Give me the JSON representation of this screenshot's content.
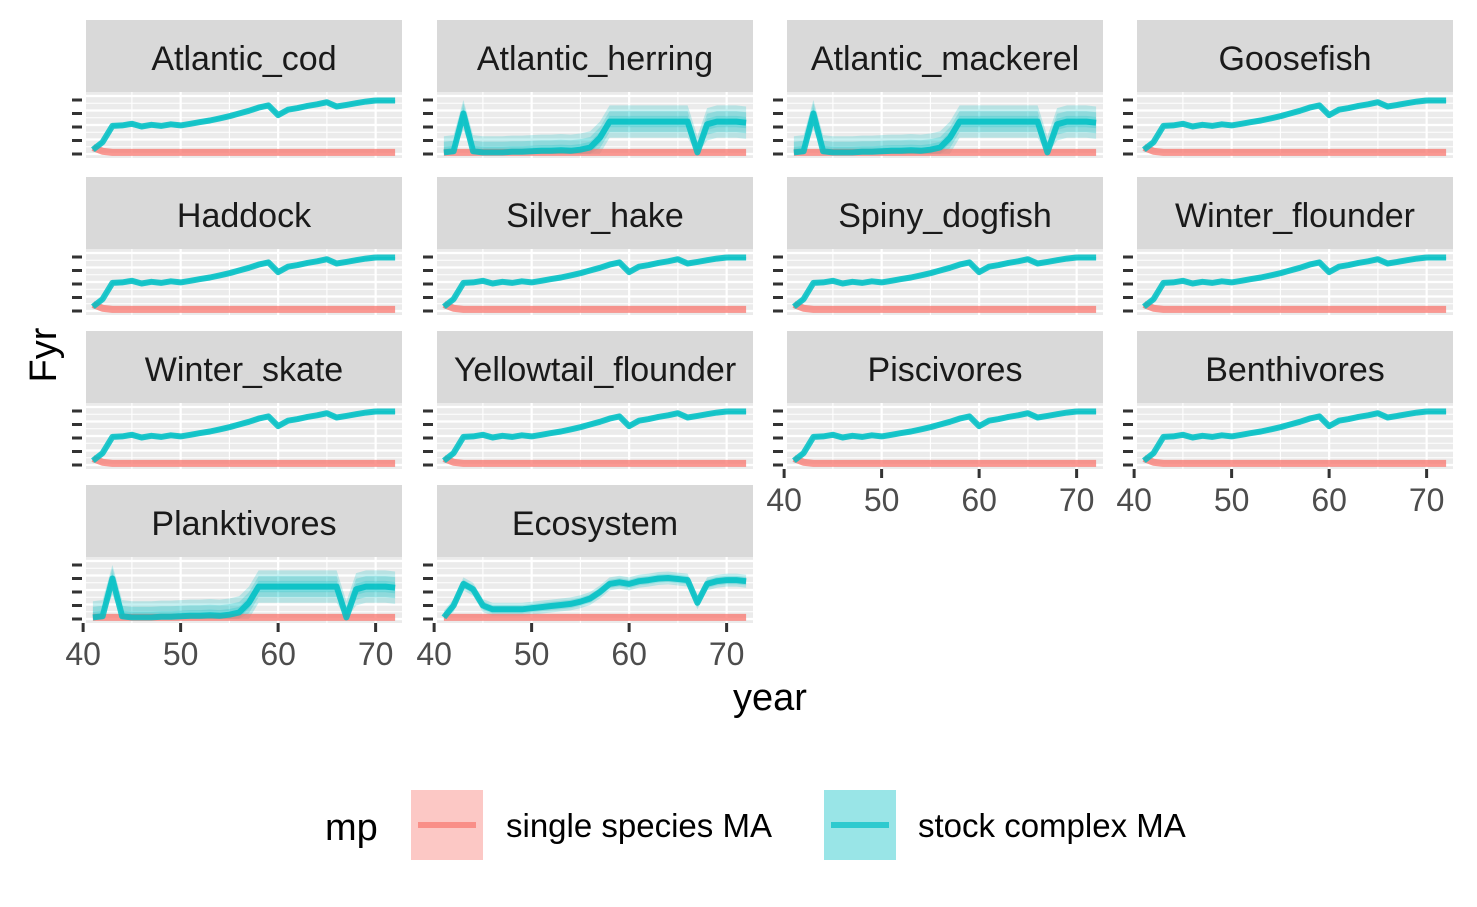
{
  "chart_data": {
    "type": "line",
    "layout": "facet grid, 4 columns, shared x axis, no y tick labels",
    "xlabel": "year",
    "ylabel": "Fyr",
    "xlim": [
      40.5,
      72.5
    ],
    "x_ticks": [
      40,
      50,
      60,
      70
    ],
    "y_tick_labels_shown": false,
    "grid": true,
    "legend": {
      "title": "mp",
      "position": "bottom",
      "entries": [
        {
          "label": "single species MA",
          "color": "#F8766D"
        },
        {
          "label": "stock complex MA",
          "color": "#00BFC4"
        }
      ]
    },
    "x": [
      41,
      42,
      43,
      44,
      45,
      46,
      47,
      48,
      49,
      50,
      51,
      52,
      53,
      54,
      55,
      56,
      57,
      58,
      59,
      60,
      61,
      62,
      63,
      64,
      65,
      66,
      67,
      68,
      69,
      70,
      71,
      72
    ],
    "ylim": [
      0,
      1
    ],
    "panels": [
      {
        "name": "Atlantic_cod",
        "pattern": "trend"
      },
      {
        "name": "Atlantic_herring",
        "pattern": "spiky"
      },
      {
        "name": "Atlantic_mackerel",
        "pattern": "spiky"
      },
      {
        "name": "Goosefish",
        "pattern": "trend"
      },
      {
        "name": "Haddock",
        "pattern": "trend"
      },
      {
        "name": "Silver_hake",
        "pattern": "trend"
      },
      {
        "name": "Spiny_dogfish",
        "pattern": "trend"
      },
      {
        "name": "Winter_flounder",
        "pattern": "trend"
      },
      {
        "name": "Winter_skate",
        "pattern": "trend"
      },
      {
        "name": "Yellowtail_flounder",
        "pattern": "trend"
      },
      {
        "name": "Piscivores",
        "pattern": "trend"
      },
      {
        "name": "Benthivores",
        "pattern": "trend"
      },
      {
        "name": "Planktivores",
        "pattern": "spiky"
      },
      {
        "name": "Ecosystem",
        "pattern": "eco"
      }
    ],
    "series_patterns": {
      "trend": {
        "stock_complex": [
          0.08,
          0.22,
          0.52,
          0.53,
          0.56,
          0.51,
          0.54,
          0.52,
          0.55,
          0.53,
          0.56,
          0.59,
          0.62,
          0.66,
          0.7,
          0.75,
          0.8,
          0.86,
          0.9,
          0.72,
          0.82,
          0.85,
          0.89,
          0.92,
          0.96,
          0.88,
          0.91,
          0.94,
          0.97,
          0.99,
          0.99,
          0.99
        ],
        "stock_complex_band": 0.05,
        "single_species": [
          0.12,
          0.05,
          0.03,
          0.03,
          0.03,
          0.03,
          0.03,
          0.03,
          0.03,
          0.03,
          0.03,
          0.03,
          0.03,
          0.03,
          0.03,
          0.03,
          0.03,
          0.03,
          0.03,
          0.03,
          0.03,
          0.03,
          0.03,
          0.03,
          0.03,
          0.03,
          0.03,
          0.03,
          0.03,
          0.03,
          0.03,
          0.03
        ]
      },
      "spiky": {
        "stock_complex": [
          0.03,
          0.05,
          0.75,
          0.05,
          0.03,
          0.03,
          0.03,
          0.04,
          0.04,
          0.05,
          0.06,
          0.06,
          0.07,
          0.06,
          0.08,
          0.12,
          0.3,
          0.6,
          0.6,
          0.6,
          0.6,
          0.6,
          0.6,
          0.6,
          0.6,
          0.6,
          0.03,
          0.55,
          0.6,
          0.6,
          0.6,
          0.58
        ],
        "stock_complex_band": 0.3,
        "single_species": [
          0.03,
          0.03,
          0.03,
          0.03,
          0.03,
          0.03,
          0.03,
          0.03,
          0.03,
          0.03,
          0.03,
          0.03,
          0.03,
          0.03,
          0.03,
          0.03,
          0.03,
          0.03,
          0.03,
          0.03,
          0.03,
          0.03,
          0.03,
          0.03,
          0.03,
          0.03,
          0.03,
          0.03,
          0.03,
          0.03,
          0.03,
          0.03
        ]
      },
      "eco": {
        "stock_complex": [
          0.03,
          0.25,
          0.65,
          0.55,
          0.25,
          0.18,
          0.18,
          0.18,
          0.18,
          0.2,
          0.22,
          0.24,
          0.26,
          0.28,
          0.32,
          0.38,
          0.5,
          0.65,
          0.68,
          0.65,
          0.7,
          0.72,
          0.75,
          0.76,
          0.74,
          0.72,
          0.3,
          0.65,
          0.7,
          0.72,
          0.72,
          0.7
        ],
        "stock_complex_band": 0.12,
        "single_species": [
          0.03,
          0.03,
          0.03,
          0.03,
          0.03,
          0.03,
          0.03,
          0.03,
          0.03,
          0.03,
          0.03,
          0.03,
          0.03,
          0.03,
          0.03,
          0.03,
          0.03,
          0.03,
          0.03,
          0.03,
          0.03,
          0.03,
          0.03,
          0.03,
          0.03,
          0.03,
          0.03,
          0.03,
          0.03,
          0.03,
          0.03,
          0.03
        ]
      }
    }
  }
}
